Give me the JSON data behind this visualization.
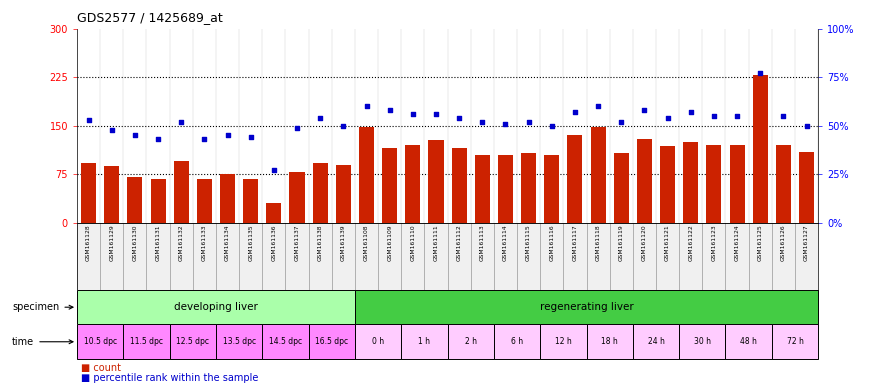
{
  "title": "GDS2577 / 1425689_at",
  "gsm_labels": [
    "GSM161128",
    "GSM161129",
    "GSM161130",
    "GSM161131",
    "GSM161132",
    "GSM161133",
    "GSM161134",
    "GSM161135",
    "GSM161136",
    "GSM161137",
    "GSM161138",
    "GSM161139",
    "GSM161108",
    "GSM161109",
    "GSM161110",
    "GSM161111",
    "GSM161112",
    "GSM161113",
    "GSM161114",
    "GSM161115",
    "GSM161116",
    "GSM161117",
    "GSM161118",
    "GSM161119",
    "GSM161120",
    "GSM161121",
    "GSM161122",
    "GSM161123",
    "GSM161124",
    "GSM161125",
    "GSM161126",
    "GSM161127"
  ],
  "bar_values": [
    92,
    88,
    70,
    67,
    95,
    68,
    75,
    68,
    30,
    78,
    93,
    90,
    148,
    115,
    120,
    128,
    115,
    105,
    105,
    108,
    105,
    135,
    148,
    108,
    130,
    118,
    125,
    120,
    120,
    228,
    120,
    110
  ],
  "percentile_values": [
    53,
    48,
    45,
    43,
    52,
    43,
    45,
    44,
    27,
    49,
    54,
    50,
    60,
    58,
    56,
    56,
    54,
    52,
    51,
    52,
    50,
    57,
    60,
    52,
    58,
    54,
    57,
    55,
    55,
    77,
    55,
    50
  ],
  "bar_color": "#cc2200",
  "dot_color": "#0000cc",
  "left_yticks": [
    0,
    75,
    150,
    225,
    300
  ],
  "right_yticks": [
    0,
    25,
    50,
    75,
    100
  ],
  "right_yticklabels": [
    "0%",
    "25%",
    "50%",
    "75%",
    "100%"
  ],
  "hline_values": [
    75,
    150,
    225
  ],
  "specimen_groups": [
    {
      "label": "developing liver",
      "start": 0,
      "end": 12,
      "color": "#aaffaa"
    },
    {
      "label": "regenerating liver",
      "start": 12,
      "end": 32,
      "color": "#44cc44"
    }
  ],
  "time_groups": [
    {
      "label": "10.5 dpc",
      "start": 0,
      "end": 2,
      "color": "#ff88ff"
    },
    {
      "label": "11.5 dpc",
      "start": 2,
      "end": 4,
      "color": "#ff88ff"
    },
    {
      "label": "12.5 dpc",
      "start": 4,
      "end": 6,
      "color": "#ff88ff"
    },
    {
      "label": "13.5 dpc",
      "start": 6,
      "end": 8,
      "color": "#ff88ff"
    },
    {
      "label": "14.5 dpc",
      "start": 8,
      "end": 10,
      "color": "#ff88ff"
    },
    {
      "label": "16.5 dpc",
      "start": 10,
      "end": 12,
      "color": "#ff88ff"
    },
    {
      "label": "0 h",
      "start": 12,
      "end": 14,
      "color": "#ffccff"
    },
    {
      "label": "1 h",
      "start": 14,
      "end": 16,
      "color": "#ffccff"
    },
    {
      "label": "2 h",
      "start": 16,
      "end": 18,
      "color": "#ffccff"
    },
    {
      "label": "6 h",
      "start": 18,
      "end": 20,
      "color": "#ffccff"
    },
    {
      "label": "12 h",
      "start": 20,
      "end": 22,
      "color": "#ffccff"
    },
    {
      "label": "18 h",
      "start": 22,
      "end": 24,
      "color": "#ffccff"
    },
    {
      "label": "24 h",
      "start": 24,
      "end": 26,
      "color": "#ffccff"
    },
    {
      "label": "30 h",
      "start": 26,
      "end": 28,
      "color": "#ffccff"
    },
    {
      "label": "48 h",
      "start": 28,
      "end": 30,
      "color": "#ffccff"
    },
    {
      "label": "72 h",
      "start": 30,
      "end": 32,
      "color": "#ffccff"
    }
  ],
  "legend_count_color": "#cc2200",
  "legend_dot_color": "#0000cc"
}
